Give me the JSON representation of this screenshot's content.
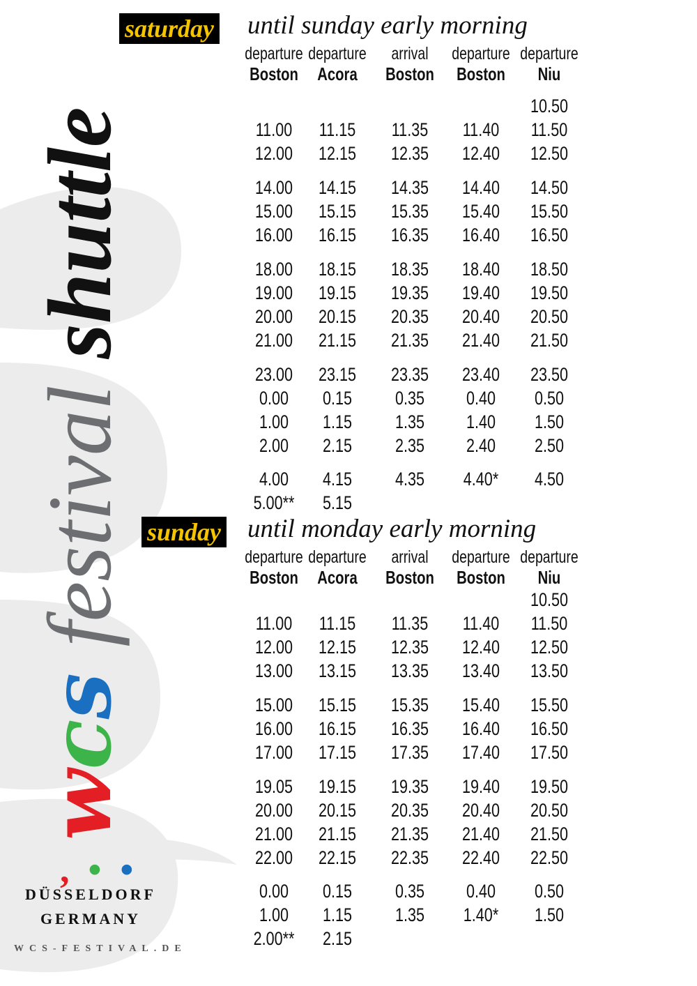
{
  "branding": {
    "wcs_letters": [
      "w",
      "c",
      "s"
    ],
    "festival": "festival",
    "shuttle": "shuttle",
    "city": "DÜSSELDORF",
    "country": "GERMANY",
    "website": "WCS-FESTIVAL.DE",
    "colors": {
      "red": "#e31e24",
      "green": "#3cb44a",
      "blue": "#1a6fc1",
      "yellow": "#f5c400"
    }
  },
  "columns": [
    {
      "top": "departure",
      "bottom": "Boston"
    },
    {
      "top": "departure",
      "bottom": "Acora"
    },
    {
      "top": "arrival",
      "bottom": "Boston"
    },
    {
      "top": "departure",
      "bottom": "Boston"
    },
    {
      "top": "departure",
      "bottom": "Niu"
    }
  ],
  "sections": [
    {
      "day": "saturday",
      "until": "until sunday early morning",
      "rows": [
        [
          "",
          "",
          "",
          "",
          "10.50"
        ],
        [
          "11.00",
          "11.15",
          "11.35",
          "11.40",
          "11.50"
        ],
        [
          "12.00",
          "12.15",
          "12.35",
          "12.40",
          "12.50"
        ],
        [
          "14.00",
          "14.15",
          "14.35",
          "14.40",
          "14.50"
        ],
        [
          "15.00",
          "15.15",
          "15.35",
          "15.40",
          "15.50"
        ],
        [
          "16.00",
          "16.15",
          "16.35",
          "16.40",
          "16.50"
        ],
        [
          "18.00",
          "18.15",
          "18.35",
          "18.40",
          "18.50"
        ],
        [
          "19.00",
          "19.15",
          "19.35",
          "19.40",
          "19.50"
        ],
        [
          "20.00",
          "20.15",
          "20.35",
          "20.40",
          "20.50"
        ],
        [
          "21.00",
          "21.15",
          "21.35",
          "21.40",
          "21.50"
        ],
        [
          "23.00",
          "23.15",
          "23.35",
          "23.40",
          "23.50"
        ],
        [
          "0.00",
          "0.15",
          "0.35",
          "0.40",
          "0.50"
        ],
        [
          "1.00",
          "1.15",
          "1.35",
          "1.40",
          "1.50"
        ],
        [
          "2.00",
          "2.15",
          "2.35",
          "2.40",
          "2.50"
        ],
        [
          "4.00",
          "4.15",
          "4.35",
          "4.40*",
          "4.50"
        ],
        [
          "5.00**",
          "5.15",
          "",
          "",
          ""
        ]
      ]
    },
    {
      "day": "sunday",
      "until": "until monday early morning",
      "rows": [
        [
          "",
          "",
          "",
          "",
          "10.50"
        ],
        [
          "11.00",
          "11.15",
          "11.35",
          "11.40",
          "11.50"
        ],
        [
          "12.00",
          "12.15",
          "12.35",
          "12.40",
          "12.50"
        ],
        [
          "13.00",
          "13.15",
          "13.35",
          "13.40",
          "13.50"
        ],
        [
          "15.00",
          "15.15",
          "15.35",
          "15.40",
          "15.50"
        ],
        [
          "16.00",
          "16.15",
          "16.35",
          "16.40",
          "16.50"
        ],
        [
          "17.00",
          "17.15",
          "17.35",
          "17.40",
          "17.50"
        ],
        [
          "19.05",
          "19.15",
          "19.35",
          "19.40",
          "19.50"
        ],
        [
          "20.00",
          "20.15",
          "20.35",
          "20.40",
          "20.50"
        ],
        [
          "21.00",
          "21.15",
          "21.35",
          "21.40",
          "21.50"
        ],
        [
          "22.00",
          "22.15",
          "22.35",
          "22.40",
          "22.50"
        ],
        [
          "0.00",
          "0.15",
          "0.35",
          "0.40",
          "0.50"
        ],
        [
          "1.00",
          "1.15",
          "1.35",
          "1.40*",
          "1.50"
        ],
        [
          "2.00**",
          "2.15",
          "",
          "",
          ""
        ]
      ]
    }
  ]
}
